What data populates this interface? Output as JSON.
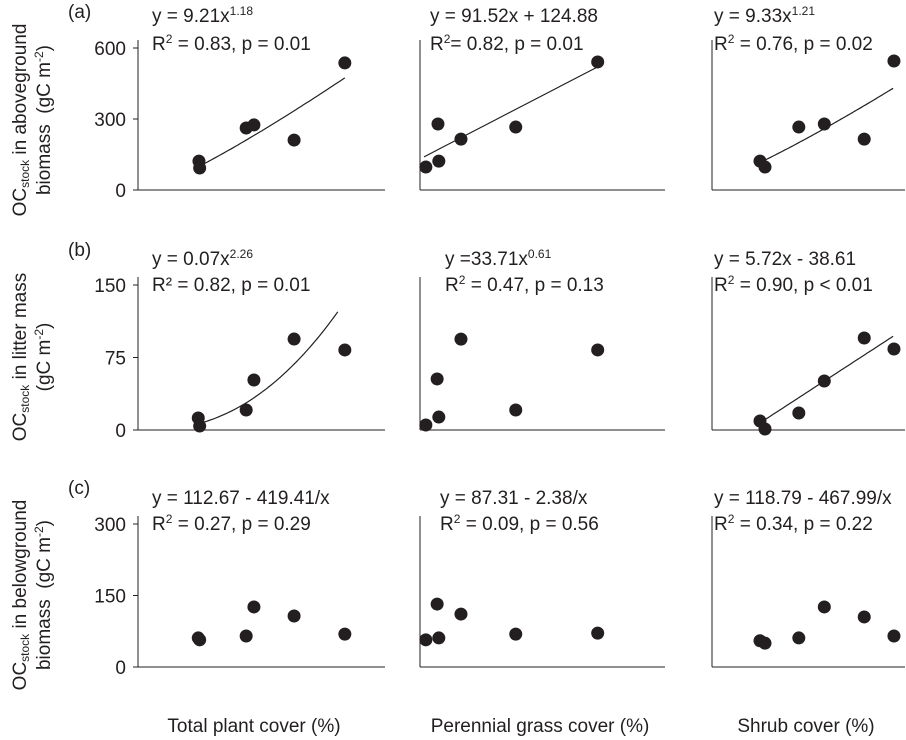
{
  "chart_data": [
    {
      "type": "scatter",
      "panel_label": "(a)",
      "color": "#231f20",
      "ylabel": {
        "main": "OC",
        "sub": "stock",
        "rest": " in aboveground",
        "line2": "biomass  (gC m",
        "sup": "-2",
        "end": ")"
      },
      "x": [
        7.5,
        7.6,
        14.2,
        15.3,
        21.0,
        28.2
      ],
      "values": [
        122,
        93,
        262,
        275,
        211,
        537
      ],
      "xlim": [
        -1.15,
        33.9
      ],
      "ylim": [
        0,
        600
      ],
      "yticks": [
        0,
        300,
        600
      ],
      "equation": {
        "text": "y = 9.21x",
        "sup": "1.18"
      },
      "r2": {
        "text": "R",
        "sup": "2",
        "tail": " = 0.83, p = 0.01"
      },
      "fit": {
        "model": "power",
        "a": 9.21,
        "b": 1.18,
        "xrange": [
          7.5,
          28.2
        ]
      }
    },
    {
      "type": "scatter",
      "color": "#231f20",
      "x": [
        0.21,
        0.5,
        0.52,
        1.05,
        2.36,
        4.32
      ],
      "values": [
        97,
        279,
        122,
        215,
        266,
        541
      ],
      "xlim": [
        0.07,
        5.93
      ],
      "ylim": [
        0,
        600
      ],
      "equation": {
        "text": "y = 91.52x + 124.88"
      },
      "r2": {
        "text": "R",
        "sup": "2",
        "tail": "= 0.82, p = 0.01"
      },
      "fit": {
        "model": "linear",
        "a": 91.52,
        "b": 124.88,
        "xrange": [
          0.165,
          4.32
        ]
      }
    },
    {
      "type": "scatter",
      "color": "#231f20",
      "x": [
        8.03,
        8.62,
        12.6,
        15.6,
        20.3,
        23.8
      ],
      "values": [
        122,
        97,
        266,
        279,
        215,
        545
      ],
      "xlim": [
        2.38,
        25.1
      ],
      "ylim": [
        0,
        600
      ],
      "equation": {
        "text": "y = 9.33x",
        "sup": "1.21"
      },
      "r2": {
        "text": "R",
        "sup": "2",
        "tail": " = 0.76, p = 0.02"
      },
      "fit": {
        "model": "power",
        "a": 9.33,
        "b": 1.21,
        "xrange": [
          7.68,
          23.7
        ]
      }
    },
    {
      "type": "scatter",
      "panel_label": "(b)",
      "color": "#231f20",
      "ylabel": {
        "main": "OC",
        "sub": "stock",
        "rest": " in litter mass",
        "line2": "(gC m",
        "sup": "-2",
        "end": ")"
      },
      "x": [
        7.4,
        7.6,
        14.2,
        15.3,
        21.0,
        28.2
      ],
      "values": [
        12.4,
        4.1,
        20.7,
        51.7,
        94.1,
        82.8
      ],
      "xlim": [
        -1.15,
        33.9
      ],
      "ylim": [
        0,
        150
      ],
      "yticks": [
        0,
        75,
        150
      ],
      "equation": {
        "text": "y = 0.07x",
        "sup": "2.26"
      },
      "r2": {
        "text": "R² = 0.82, p = 0.01"
      },
      "fit": {
        "model": "power",
        "a": 0.07,
        "b": 2.26,
        "xrange": [
          7.6,
          27.2
        ]
      }
    },
    {
      "type": "scatter",
      "color": "#231f20",
      "x": [
        0.21,
        0.48,
        0.52,
        1.05,
        2.36,
        4.32
      ],
      "values": [
        5.2,
        52.8,
        13.4,
        94,
        20.7,
        82.8
      ],
      "xlim": [
        0.07,
        5.93
      ],
      "ylim": [
        0,
        150
      ],
      "equation": {
        "text": "y =33.71x",
        "sup": "0.61"
      },
      "r2": {
        "text": "R",
        "sup": "2",
        "tail": " = 0.47, p = 0.13"
      }
    },
    {
      "type": "scatter",
      "color": "#231f20",
      "x": [
        8.03,
        8.62,
        12.6,
        15.6,
        20.3,
        23.8
      ],
      "values": [
        9.3,
        1,
        17.6,
        50.7,
        95.2,
        83.8
      ],
      "xlim": [
        2.38,
        25.1
      ],
      "ylim": [
        0,
        150
      ],
      "equation": {
        "text": "y = 5.72x - 38.61"
      },
      "r2": {
        "text": "R",
        "sup": "2",
        "tail": " = 0.90, p < 0.01"
      },
      "fit": {
        "model": "linear",
        "a": 5.72,
        "b": -38.61,
        "xrange": [
          8.3,
          23.7
        ]
      }
    },
    {
      "type": "scatter",
      "panel_label": "(c)",
      "color": "#231f20",
      "ylabel": {
        "main": "OC",
        "sub": "stock",
        "rest": " in belowground",
        "line2": "biomass  (gC m",
        "sup": "-2",
        "end": ")"
      },
      "xlabel": "Total plant cover (%)",
      "x": [
        7.4,
        7.6,
        14.2,
        15.3,
        21.0,
        28.2
      ],
      "values": [
        61,
        57,
        65,
        126,
        107,
        69
      ],
      "xlim": [
        -1.15,
        33.9
      ],
      "ylim": [
        0,
        300
      ],
      "yticks": [
        0,
        150,
        300
      ],
      "equation": {
        "text": "y = 112.67 - 419.41/x"
      },
      "r2": {
        "text": "R",
        "sup": "2",
        "tail": " = 0.27, p = 0.29"
      }
    },
    {
      "type": "scatter",
      "color": "#231f20",
      "xlabel": "Perennial grass cover (%)",
      "x": [
        0.21,
        0.48,
        0.52,
        1.05,
        2.36,
        4.32
      ],
      "values": [
        57,
        132,
        61,
        111,
        69,
        71
      ],
      "xlim": [
        0.07,
        5.93
      ],
      "ylim": [
        0,
        300
      ],
      "equation": {
        "text": "y = 87.31 - 2.38/x"
      },
      "r2": {
        "text": "R",
        "sup": "2",
        "tail": " = 0.09, p = 0.56"
      }
    },
    {
      "type": "scatter",
      "color": "#231f20",
      "xlabel": "Shrub cover (%)",
      "x": [
        8.03,
        8.62,
        12.6,
        15.6,
        20.3,
        23.8
      ],
      "values": [
        55,
        50,
        61,
        126,
        105,
        65
      ],
      "xlim": [
        2.38,
        25.1
      ],
      "ylim": [
        0,
        300
      ],
      "equation": {
        "text": "y = 118.79 - 467.99/x"
      },
      "r2": {
        "text": "R",
        "sup": "2",
        "tail": " = 0.34, p = 0.22"
      }
    }
  ]
}
